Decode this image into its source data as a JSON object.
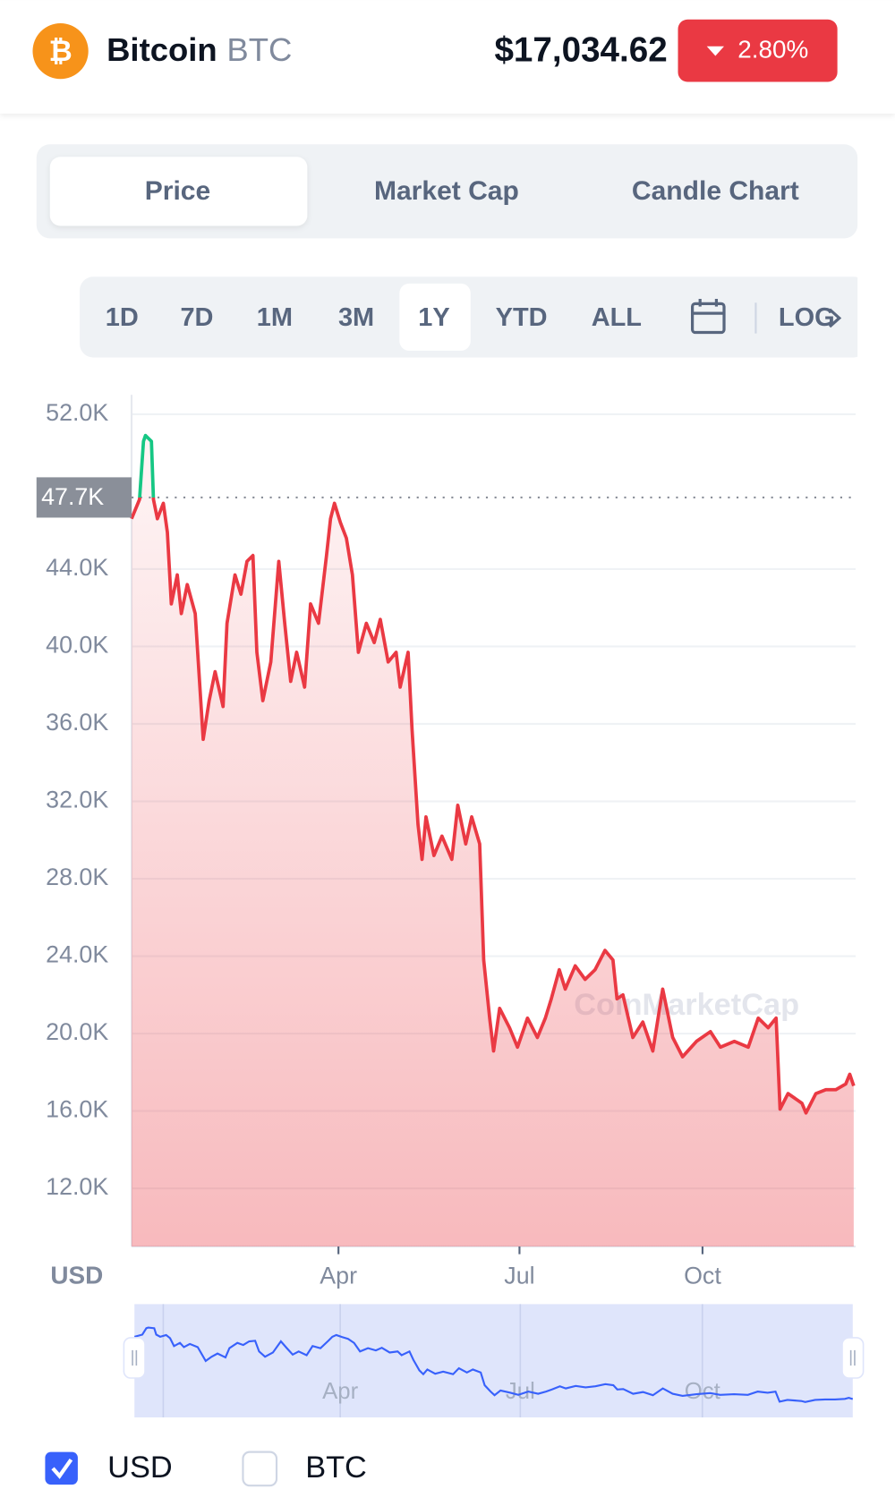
{
  "header": {
    "name": "Bitcoin",
    "symbol": "BTC",
    "price": "$17,034.62",
    "change": "2.80%"
  },
  "tabs": [
    "Price",
    "Market Cap",
    "Candle Chart"
  ],
  "ranges": [
    "1D",
    "7D",
    "1M",
    "3M",
    "1Y",
    "YTD",
    "ALL",
    "LOG"
  ],
  "chart_data": {
    "type": "line",
    "ylabel": "USD",
    "watermark": "CoinMarketCap",
    "color": "#ea3943",
    "up_color": "#16c784",
    "reference": {
      "value": 47700,
      "label": "47.7K"
    },
    "x": [
      -14,
      -10,
      -8,
      -7,
      -4,
      -3,
      -1,
      2,
      4,
      6,
      9,
      11,
      14,
      18,
      22,
      25,
      28,
      32,
      34,
      38,
      41,
      44,
      47,
      49,
      52,
      56,
      60,
      63,
      66,
      69,
      73,
      76,
      80,
      84,
      86,
      88,
      91,
      94,
      97,
      100,
      104,
      108,
      111,
      115,
      119,
      121,
      125,
      127,
      130,
      132,
      134,
      138,
      142,
      147,
      150,
      154,
      157,
      161,
      163,
      166,
      168,
      171,
      176,
      180,
      185,
      190,
      194,
      197,
      201,
      204,
      209,
      214,
      219,
      224,
      228,
      230,
      233,
      238,
      243,
      248,
      253,
      258,
      263,
      270,
      277,
      282,
      289,
      296,
      301,
      306,
      310,
      312,
      316,
      323,
      325,
      330,
      335,
      340,
      345,
      347,
      349
    ],
    "values": [
      46600,
      47600,
      50600,
      50900,
      50600,
      47600,
      46600,
      47400,
      45900,
      42200,
      43700,
      41700,
      43200,
      41700,
      35200,
      37200,
      38700,
      36900,
      41200,
      43700,
      42700,
      44400,
      44700,
      39700,
      37200,
      39200,
      44400,
      41200,
      38200,
      39700,
      37900,
      42200,
      41200,
      44700,
      46600,
      47400,
      46400,
      45600,
      43700,
      39700,
      41200,
      40200,
      41400,
      39200,
      39700,
      37900,
      39700,
      35700,
      30800,
      29000,
      31200,
      29200,
      30200,
      29000,
      31800,
      29800,
      31200,
      29800,
      23800,
      20800,
      19100,
      21300,
      20300,
      19300,
      20800,
      19800,
      20800,
      21800,
      23300,
      22300,
      23500,
      22800,
      23300,
      24300,
      23800,
      21800,
      22000,
      19800,
      20600,
      19100,
      22300,
      19800,
      18800,
      19600,
      20100,
      19300,
      19600,
      19300,
      20800,
      20300,
      20800,
      16100,
      16900,
      16400,
      15900,
      16900,
      17100,
      17100,
      17400,
      17900,
      17300
    ],
    "xlim": [
      -14,
      349
    ],
    "xticks": [
      {
        "value": 90,
        "label": "Apr"
      },
      {
        "value": 181,
        "label": "Jul"
      },
      {
        "value": 273,
        "label": "Oct"
      }
    ],
    "ylim": [
      9000,
      53000
    ],
    "yticks": [
      {
        "value": 12000,
        "label": "12.0K"
      },
      {
        "value": 16000,
        "label": "16.0K"
      },
      {
        "value": 20000,
        "label": "20.0K"
      },
      {
        "value": 24000,
        "label": "24.0K"
      },
      {
        "value": 28000,
        "label": "28.0K"
      },
      {
        "value": 32000,
        "label": "32.0K"
      },
      {
        "value": 36000,
        "label": "36.0K"
      },
      {
        "value": 40000,
        "label": "40.0K"
      },
      {
        "value": 44000,
        "label": "44.0K"
      },
      {
        "value": 52000,
        "label": "52.0K"
      }
    ],
    "grid": true
  },
  "currency_options": [
    "USD",
    "BTC"
  ]
}
